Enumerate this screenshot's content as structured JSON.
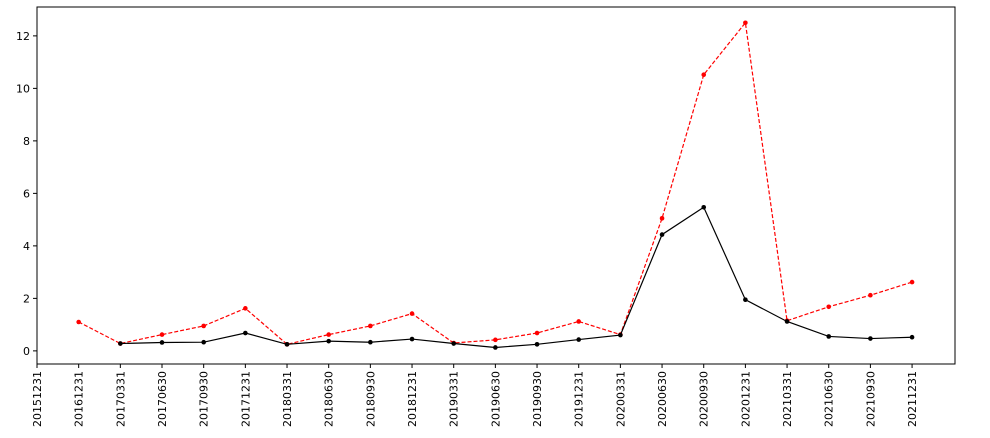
{
  "chart_data": {
    "type": "line",
    "categories": [
      "20151231",
      "20161231",
      "20170331",
      "20170630",
      "20170930",
      "20171231",
      "20180331",
      "20180630",
      "20180930",
      "20181231",
      "20190331",
      "20190630",
      "20190930",
      "20191231",
      "20200331",
      "20200630",
      "20200930",
      "20201231",
      "20210331",
      "20210630",
      "20210930",
      "20211231"
    ],
    "series": [
      {
        "color": "#ff0000",
        "linestyle": "dashed",
        "values": [
          null,
          1.1,
          0.28,
          0.62,
          0.95,
          1.62,
          0.25,
          0.62,
          0.95,
          1.42,
          0.3,
          0.42,
          0.68,
          1.12,
          0.62,
          5.05,
          10.52,
          12.5,
          1.15,
          1.68,
          2.12,
          2.62
        ]
      },
      {
        "color": "#000000",
        "linestyle": "solid",
        "values": [
          null,
          null,
          0.28,
          0.32,
          0.33,
          0.68,
          0.25,
          0.37,
          0.33,
          0.45,
          0.28,
          0.13,
          0.25,
          0.43,
          0.6,
          4.43,
          5.47,
          1.95,
          1.12,
          0.55,
          0.47,
          0.52
        ]
      }
    ],
    "ylim": [
      -0.5,
      13.1
    ],
    "yticks": [
      0,
      2,
      4,
      6,
      8,
      10,
      12
    ],
    "grid": false
  }
}
